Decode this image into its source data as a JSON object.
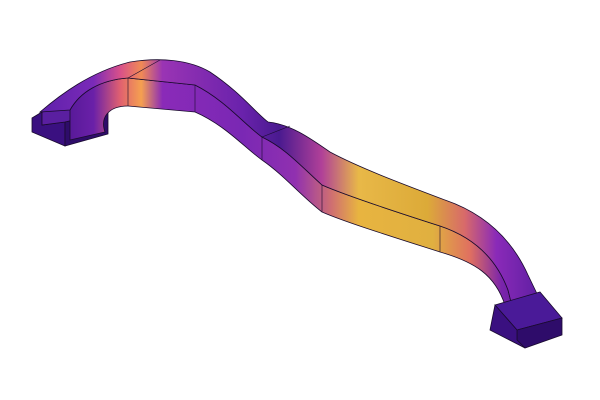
{
  "render": {
    "background": "#ffffff",
    "edge_color": "#1a0b2e",
    "colormap": [
      "#3b0f8c",
      "#6a1fb0",
      "#8a2bb8",
      "#c83e8f",
      "#f07f4f",
      "#f5b94a",
      "#e8c040",
      "#d9a632"
    ]
  }
}
